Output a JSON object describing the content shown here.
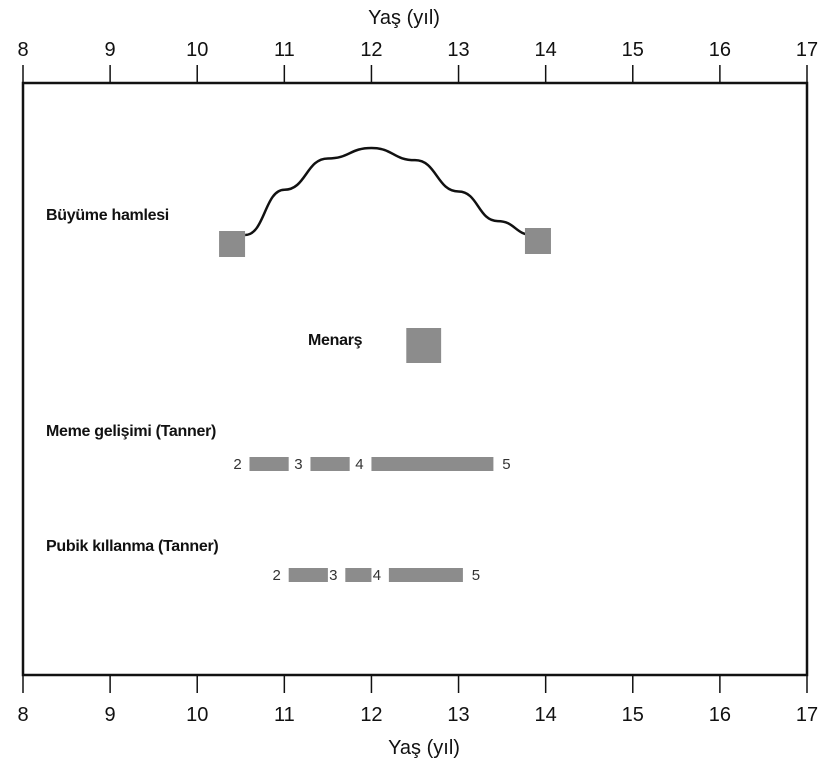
{
  "chart_data": {
    "type": "range",
    "xlabel": "Yaş (yıl)",
    "xlim": [
      8,
      17
    ],
    "xticks": [
      8,
      9,
      10,
      11,
      12,
      13,
      14,
      15,
      16,
      17
    ],
    "colors": {
      "bar": "#8c8c8c",
      "curve": "#111111",
      "frame": "#111111"
    },
    "rows": {
      "growth": {
        "label": "Büyüme hamlesi",
        "start": 10.4,
        "end": 13.9,
        "peak": 12.0,
        "curve": [
          [
            10.55,
            0.0
          ],
          [
            11.0,
            0.52
          ],
          [
            11.5,
            0.88
          ],
          [
            12.0,
            1.0
          ],
          [
            12.5,
            0.86
          ],
          [
            13.0,
            0.5
          ],
          [
            13.45,
            0.16
          ],
          [
            13.85,
            0.0
          ]
        ]
      },
      "menarche": {
        "label": "Menarş",
        "start": 12.4,
        "end": 12.8
      },
      "breast": {
        "label": "Meme gelişimi (Tanner)",
        "stages": [
          {
            "label": "2",
            "start": 10.6,
            "end": 11.05
          },
          {
            "label": "3",
            "start": 11.3,
            "end": 11.75
          },
          {
            "label": "4",
            "start": 12.0,
            "end": 13.4
          },
          {
            "label": "5",
            "start": null,
            "end": null
          }
        ]
      },
      "pubic": {
        "label": "Pubik kıllanma (Tanner)",
        "stages": [
          {
            "label": "2",
            "start": 11.05,
            "end": 11.5
          },
          {
            "label": "3",
            "start": 11.7,
            "end": 12.0
          },
          {
            "label": "4",
            "start": 12.2,
            "end": 13.05
          },
          {
            "label": "5",
            "start": null,
            "end": null
          }
        ]
      }
    }
  }
}
